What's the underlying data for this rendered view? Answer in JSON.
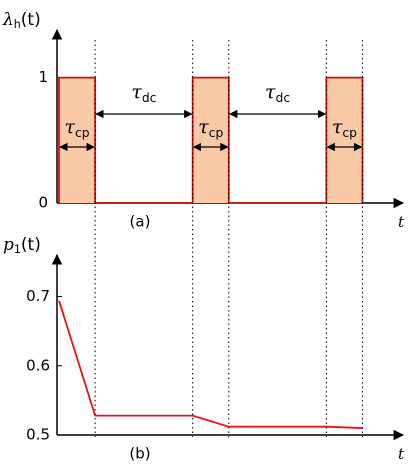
{
  "chart_data": [
    {
      "type": "step",
      "ylabel": {
        "symbol": "λ",
        "subscript": "h",
        "argument": "(t)"
      },
      "xlabel": "t",
      "caption": "(a)",
      "x": [
        0,
        0,
        1,
        1,
        3.7,
        3.7,
        4.7,
        4.7,
        7.4,
        7.4,
        8.4,
        8.4
      ],
      "values": [
        0,
        1,
        1,
        0,
        0,
        1,
        1,
        0,
        0,
        1,
        1,
        0
      ],
      "color": "#cc1111",
      "fill": "#f9c9a5",
      "xlim": [
        0,
        9.3
      ],
      "ylim": [
        0,
        1.38
      ],
      "yticks": [
        0,
        1
      ],
      "annotations": [
        {
          "symbol": "τ",
          "subscript": "cp"
        },
        {
          "symbol": "τ",
          "subscript": "dc"
        },
        {
          "symbol": "τ",
          "subscript": "cp"
        },
        {
          "symbol": "τ",
          "subscript": "dc"
        },
        {
          "symbol": "τ",
          "subscript": "cp"
        }
      ]
    },
    {
      "type": "line",
      "ylabel": {
        "symbol": "p",
        "subscript": "1",
        "argument": "(t)"
      },
      "xlabel": "t",
      "caption": "(b)",
      "x": [
        0,
        1,
        3.7,
        4.7,
        7.4,
        8.4
      ],
      "values": [
        0.694,
        0.528,
        0.528,
        0.512,
        0.512,
        0.51
      ],
      "color": "#ee1111",
      "xlim": [
        0,
        9.3
      ],
      "ylim": [
        0.5,
        0.76
      ],
      "yticks": [
        0.5,
        0.6,
        0.7
      ]
    }
  ]
}
